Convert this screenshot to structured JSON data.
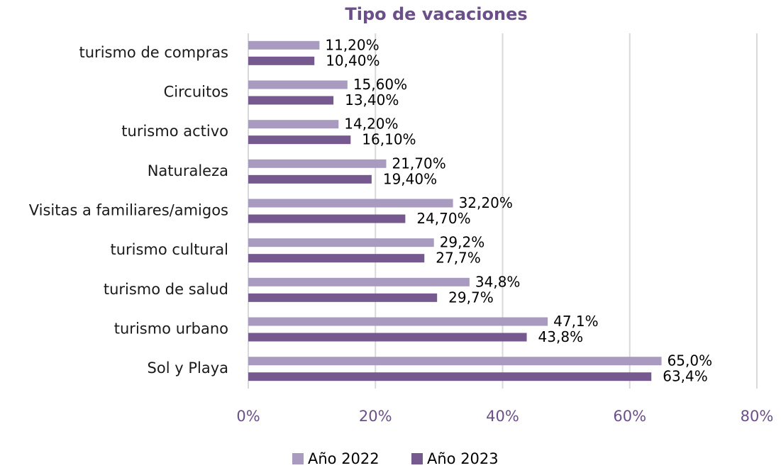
{
  "chart_data": {
    "type": "bar",
    "orientation": "horizontal",
    "title": "Tipo de vacaciones",
    "categories": [
      "turismo de compras",
      "Circuitos",
      "turismo activo",
      "Naturaleza",
      "Visitas a familiares/amigos",
      "turismo cultural",
      "turismo de salud",
      "turismo urbano",
      "Sol y Playa"
    ],
    "series": [
      {
        "name": "Año 2022",
        "color": "#a99bc0",
        "values": [
          11.2,
          15.6,
          14.2,
          21.7,
          32.2,
          29.2,
          34.8,
          47.1,
          65.0
        ],
        "value_labels": [
          "11,20%",
          "15,60%",
          "14,20%",
          "21,70%",
          "32,20%",
          "29,2%",
          "34,8%",
          "47,1%",
          "65,0%"
        ]
      },
      {
        "name": "Año 2023",
        "color": "#75598f",
        "values": [
          10.4,
          13.4,
          16.1,
          19.4,
          24.7,
          27.7,
          29.7,
          43.8,
          63.4
        ],
        "value_labels": [
          "10,40%",
          "13,40%",
          "16,10%",
          "19,40%",
          "24,70%",
          "27,7%",
          "29,7%",
          "43,8%",
          "63,4%"
        ]
      }
    ],
    "xlim": [
      0,
      80
    ],
    "xticks": [
      {
        "value": 0,
        "label": "0%"
      },
      {
        "value": 20,
        "label": "20%"
      },
      {
        "value": 40,
        "label": "40%"
      },
      {
        "value": 60,
        "label": "60%"
      },
      {
        "value": 80,
        "label": "80%"
      }
    ],
    "grid": true,
    "legend": "bottom"
  }
}
